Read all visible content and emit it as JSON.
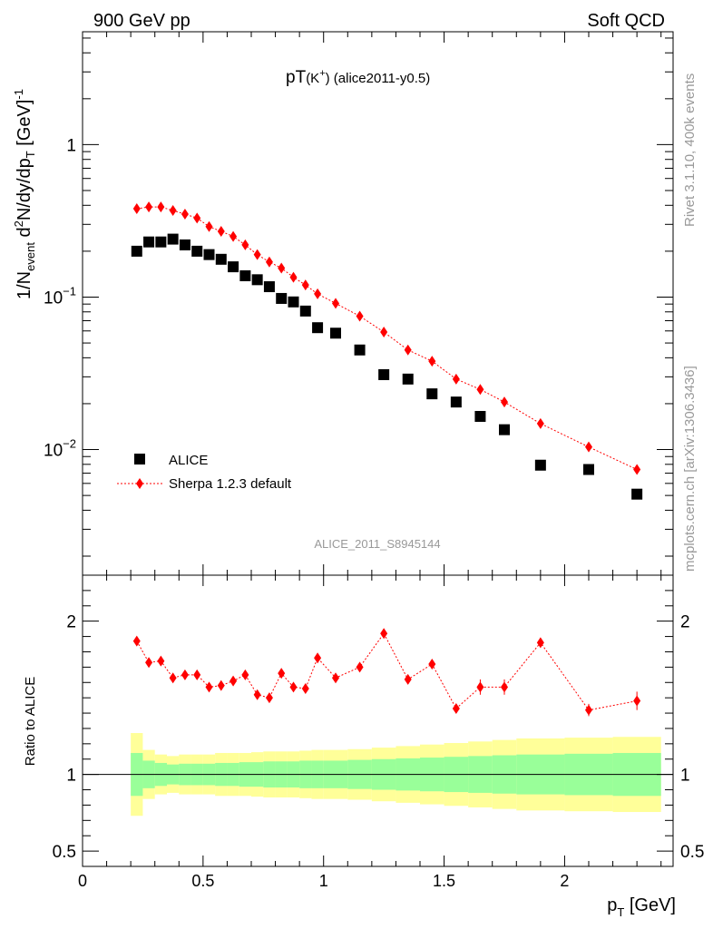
{
  "header": {
    "left": "900 GeV pp",
    "right": "Soft QCD",
    "side_top": "Rivet 3.1.10,  400k events",
    "side_bottom": "mcplots.cern.ch [arXiv:1306.3436]",
    "analysis_id": "ALICE_2011_S8945144"
  },
  "chart_data": [
    {
      "type": "scatter",
      "title": {
        "main": "pT",
        "paren": "(K",
        "sup": "+",
        "close": ")",
        "rest": " (alice2011-y0.5)"
      },
      "ylabel": "1/N_event d^2N/dy/dp_T [GeV]^-1",
      "ylabel_parts": {
        "a": "1/N",
        "b": "event",
        "c": " d",
        "d": "2",
        "e": "N/dy/dp",
        "f": "T",
        "g": " [GeV]",
        "h": "-1"
      },
      "yscale": "log",
      "ylim": [
        0.0015,
        5.5
      ],
      "xlim": [
        0,
        2.45
      ],
      "yticks": [
        {
          "value": 1,
          "base": "1",
          "exp": ""
        },
        {
          "value": 0.1,
          "base": "10",
          "exp": "−1"
        },
        {
          "value": 0.01,
          "base": "10",
          "exp": "−2"
        }
      ],
      "legend": {
        "position": "bottom-left",
        "alice": "ALICE",
        "sherpa": "Sherpa 1.2.3 default"
      },
      "x": [
        0.225,
        0.275,
        0.325,
        0.375,
        0.425,
        0.475,
        0.525,
        0.575,
        0.625,
        0.675,
        0.725,
        0.775,
        0.825,
        0.875,
        0.925,
        0.975,
        1.05,
        1.15,
        1.25,
        1.35,
        1.45,
        1.55,
        1.65,
        1.75,
        1.9,
        2.1,
        2.3
      ],
      "series": [
        {
          "name": "ALICE",
          "color": "#000000",
          "marker": "square",
          "values": [
            0.2,
            0.23,
            0.23,
            0.24,
            0.22,
            0.2,
            0.19,
            0.177,
            0.158,
            0.138,
            0.13,
            0.117,
            0.098,
            0.093,
            0.081,
            0.063,
            0.058,
            0.045,
            0.031,
            0.029,
            0.0232,
            0.0205,
            0.0165,
            0.0135,
            0.0079,
            0.0074,
            0.0051
          ]
        },
        {
          "name": "Sherpa 1.2.3 default",
          "color": "#ff0000",
          "marker": "diamond",
          "values": [
            0.38,
            0.39,
            0.39,
            0.37,
            0.35,
            0.33,
            0.29,
            0.27,
            0.25,
            0.22,
            0.19,
            0.17,
            0.155,
            0.135,
            0.12,
            0.105,
            0.091,
            0.075,
            0.059,
            0.045,
            0.038,
            0.029,
            0.0248,
            0.0205,
            0.0148,
            0.0104,
            0.0074
          ]
        }
      ]
    },
    {
      "type": "line",
      "ylabel": "Ratio to ALICE",
      "xlabel": {
        "a": "p",
        "b": "T",
        "c": " [GeV]"
      },
      "ylim": [
        0.4,
        2.3
      ],
      "xlim": [
        0,
        2.45
      ],
      "yticks": [
        {
          "value": 2,
          "label": "2"
        },
        {
          "value": 1,
          "label": "1"
        },
        {
          "value": 0.5,
          "label": "0.5"
        }
      ],
      "xticks": [
        {
          "value": 0,
          "label": "0"
        },
        {
          "value": 0.5,
          "label": "0.5"
        },
        {
          "value": 1,
          "label": "1"
        },
        {
          "value": 1.5,
          "label": "1.5"
        },
        {
          "value": 2,
          "label": "2"
        }
      ],
      "bands": {
        "yellow_color": "#ffff99",
        "green_color": "#99ff99",
        "edges": [
          0.2,
          0.25,
          0.3,
          0.35,
          0.4,
          0.45,
          0.5,
          0.55,
          0.6,
          0.65,
          0.7,
          0.75,
          0.8,
          0.85,
          0.9,
          0.95,
          1.0,
          1.1,
          1.2,
          1.3,
          1.4,
          1.5,
          1.6,
          1.7,
          1.8,
          2.0,
          2.2,
          2.4
        ],
        "yellow": [
          0.27,
          0.16,
          0.13,
          0.12,
          0.13,
          0.13,
          0.13,
          0.14,
          0.14,
          0.14,
          0.145,
          0.15,
          0.15,
          0.15,
          0.155,
          0.16,
          0.16,
          0.165,
          0.175,
          0.185,
          0.195,
          0.205,
          0.215,
          0.225,
          0.235,
          0.24,
          0.245
        ],
        "green": [
          0.14,
          0.09,
          0.075,
          0.065,
          0.07,
          0.07,
          0.07,
          0.075,
          0.075,
          0.08,
          0.08,
          0.085,
          0.085,
          0.085,
          0.09,
          0.09,
          0.09,
          0.095,
          0.1,
          0.105,
          0.11,
          0.115,
          0.12,
          0.125,
          0.13,
          0.135,
          0.14
        ]
      },
      "ratio": {
        "values": [
          1.87,
          1.73,
          1.74,
          1.63,
          1.65,
          1.65,
          1.57,
          1.58,
          1.61,
          1.65,
          1.52,
          1.5,
          1.66,
          1.57,
          1.56,
          1.76,
          1.63,
          1.7,
          1.92,
          1.62,
          1.72,
          1.43,
          1.57,
          1.57,
          1.86,
          1.42,
          1.48
        ],
        "err": [
          0.03,
          0.03,
          0.03,
          0.03,
          0.03,
          0.03,
          0.03,
          0.03,
          0.03,
          0.03,
          0.03,
          0.03,
          0.03,
          0.03,
          0.03,
          0.03,
          0.03,
          0.03,
          0.03,
          0.03,
          0.03,
          0.03,
          0.05,
          0.05,
          0.03,
          0.04,
          0.06
        ]
      }
    }
  ]
}
